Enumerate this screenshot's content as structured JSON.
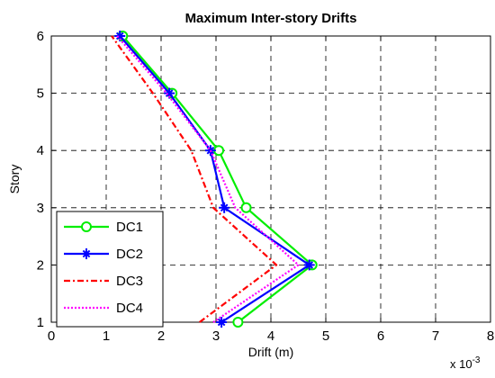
{
  "chart_data": {
    "type": "line",
    "title": "Maximum Inter-story Drifts",
    "xlabel": "Drift (m)",
    "ylabel": "Story",
    "x_scale_label": "x 10",
    "x_scale_exponent": "-3",
    "xlim": [
      0,
      8
    ],
    "ylim": [
      1,
      6
    ],
    "xticks": [
      "0",
      "1",
      "2",
      "3",
      "4",
      "5",
      "6",
      "7",
      "8"
    ],
    "yticks": [
      "1",
      "2",
      "3",
      "4",
      "5",
      "6"
    ],
    "grid": true,
    "legend_position": "lower-left",
    "series": [
      {
        "name": "DC1",
        "color": "#00ee00",
        "style": "solid",
        "marker": "circle",
        "points": [
          [
            3.4,
            1
          ],
          [
            4.75,
            2
          ],
          [
            3.55,
            3
          ],
          [
            3.05,
            4
          ],
          [
            2.2,
            5
          ],
          [
            1.3,
            6
          ]
        ]
      },
      {
        "name": "DC2",
        "color": "#0000ff",
        "style": "solid",
        "marker": "star",
        "points": [
          [
            3.1,
            1
          ],
          [
            4.7,
            2
          ],
          [
            3.15,
            3
          ],
          [
            2.9,
            4
          ],
          [
            2.15,
            5
          ],
          [
            1.25,
            6
          ]
        ]
      },
      {
        "name": "DC3",
        "color": "#ff0000",
        "style": "dashdot",
        "marker": "none",
        "points": [
          [
            2.7,
            1
          ],
          [
            4.1,
            2
          ],
          [
            2.95,
            3
          ],
          [
            2.55,
            4
          ],
          [
            1.85,
            5
          ],
          [
            1.1,
            6
          ]
        ]
      },
      {
        "name": "DC4",
        "color": "#ff00ff",
        "style": "dotted",
        "marker": "none",
        "points": [
          [
            2.95,
            1
          ],
          [
            4.5,
            2
          ],
          [
            3.35,
            3
          ],
          [
            2.9,
            4
          ],
          [
            2.1,
            5
          ],
          [
            1.2,
            6
          ]
        ]
      }
    ]
  }
}
